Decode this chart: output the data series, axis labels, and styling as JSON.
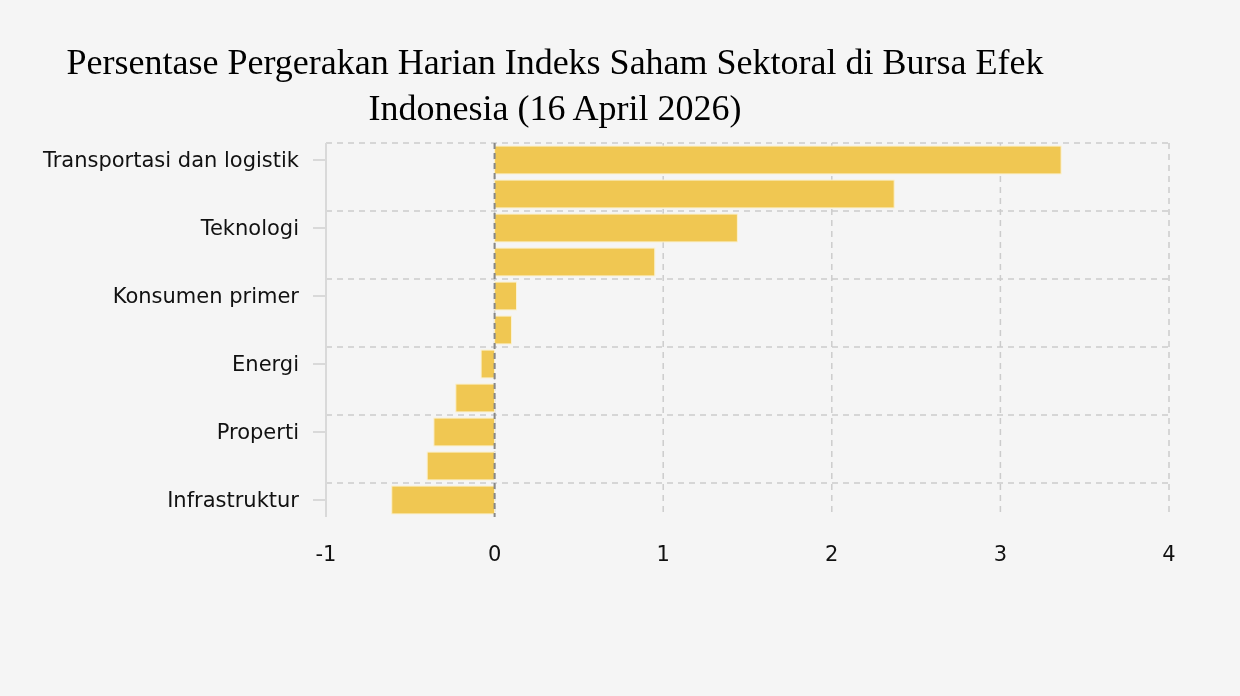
{
  "chart_data": {
    "type": "bar",
    "orientation": "horizontal",
    "title": "Persentase Pergerakan Harian Indeks Saham Sektoral di Bursa Efek Indonesia (16 April 2026)",
    "categories": [
      "Transportasi dan logistik",
      null,
      "Teknologi",
      null,
      "Konsumen primer",
      null,
      "Energi",
      null,
      "Properti",
      null,
      "Infrastruktur"
    ],
    "values": [
      3.36,
      2.37,
      1.44,
      0.95,
      0.13,
      0.1,
      -0.08,
      -0.23,
      -0.36,
      -0.4,
      -0.61
    ],
    "color": "#f0c752",
    "xlim": [
      -1,
      4
    ],
    "xticks": [
      -1,
      0,
      1,
      2,
      3,
      4
    ],
    "grid": true,
    "ref_lines": [
      {
        "axis": "x",
        "value": 0,
        "color": "#888888",
        "line_style": "dashed"
      }
    ]
  }
}
